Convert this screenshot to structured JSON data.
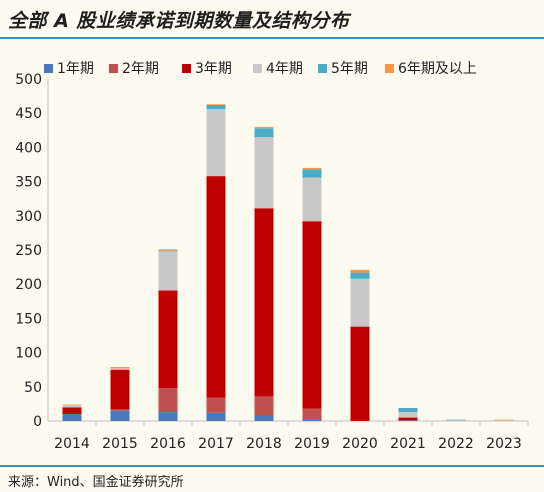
{
  "header": {
    "title": "全部 A 股业绩承诺到期数量及结构分布"
  },
  "footer": {
    "source": "来源：Wind、国金证券研究所"
  },
  "chart_data": {
    "type": "bar",
    "stacked": true,
    "categories": [
      "2014",
      "2015",
      "2016",
      "2017",
      "2018",
      "2019",
      "2020",
      "2021",
      "2022",
      "2023"
    ],
    "series": [
      {
        "name": "1年期",
        "color": "#4a78b8",
        "values": [
          10,
          15,
          13,
          12,
          8,
          2,
          0,
          1,
          0,
          0
        ]
      },
      {
        "name": "2年期",
        "color": "#c0504d",
        "values": [
          0,
          2,
          35,
          22,
          28,
          16,
          0,
          0,
          0,
          0
        ]
      },
      {
        "name": "3年期",
        "color": "#c00000",
        "values": [
          10,
          58,
          143,
          324,
          275,
          274,
          138,
          4,
          0,
          0
        ]
      },
      {
        "name": "4年期",
        "color": "#c8c8c8",
        "values": [
          3,
          2,
          57,
          98,
          104,
          64,
          70,
          8,
          1,
          1
        ]
      },
      {
        "name": "5年期",
        "color": "#4bacc6",
        "values": [
          0,
          0,
          1,
          6,
          13,
          12,
          9,
          6,
          1,
          0
        ]
      },
      {
        "name": "6年期及以上",
        "color": "#f79646",
        "values": [
          1,
          2,
          2,
          1,
          2,
          2,
          4,
          0,
          0,
          1
        ]
      }
    ],
    "y_ticks": [
      0,
      50,
      100,
      150,
      200,
      250,
      300,
      350,
      400,
      450,
      500
    ],
    "ylim": [
      0,
      500
    ],
    "legend_position": "top",
    "grid": false
  }
}
